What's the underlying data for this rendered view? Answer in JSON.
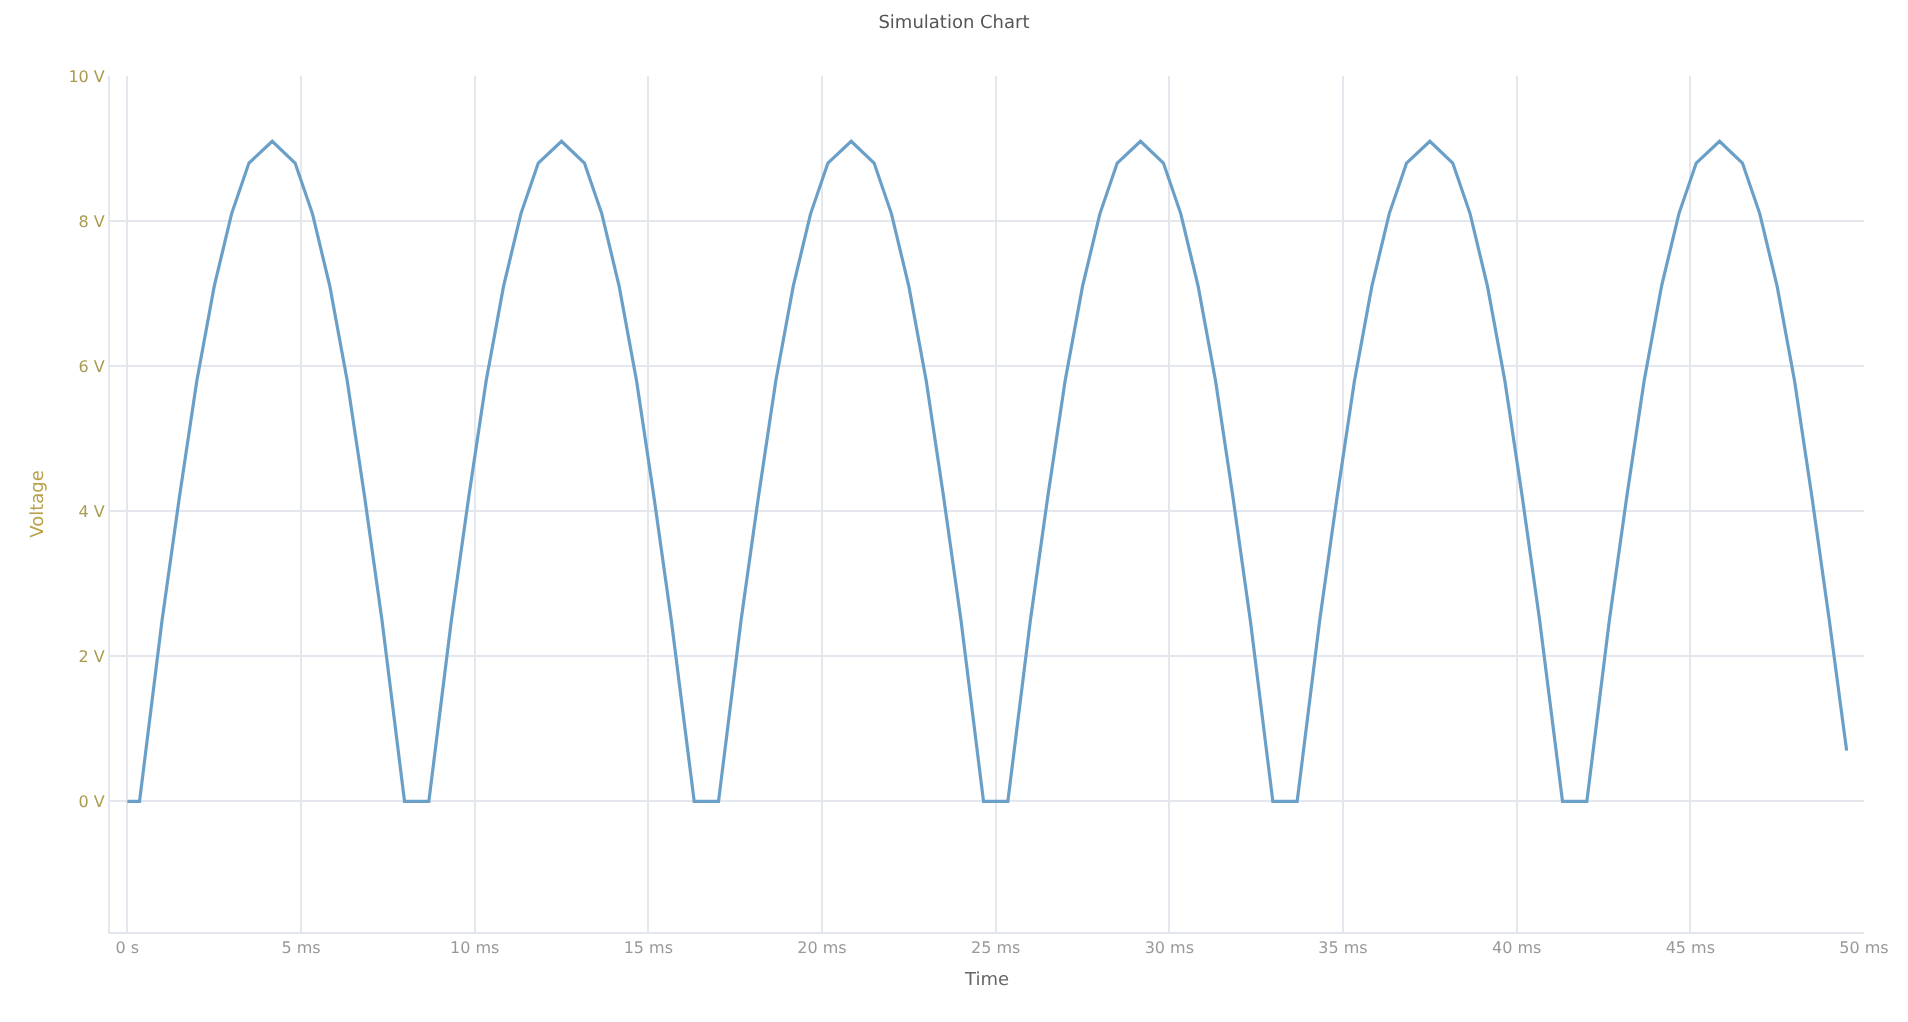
{
  "chart_data": {
    "type": "line",
    "title": "Simulation Chart",
    "xlabel": "Time",
    "ylabel": "Voltage",
    "xlim": [
      -0.5,
      50
    ],
    "ylim": [
      -1.8,
      10
    ],
    "xticks": [
      {
        "value": 0,
        "label": "0 s"
      },
      {
        "value": 5,
        "label": "5 ms"
      },
      {
        "value": 10,
        "label": "10 ms"
      },
      {
        "value": 15,
        "label": "15 ms"
      },
      {
        "value": 20,
        "label": "20 ms"
      },
      {
        "value": 25,
        "label": "25 ms"
      },
      {
        "value": 30,
        "label": "30 ms"
      },
      {
        "value": 35,
        "label": "35 ms"
      },
      {
        "value": 40,
        "label": "40 ms"
      },
      {
        "value": 45,
        "label": "45 ms"
      },
      {
        "value": 50,
        "label": "50 ms"
      }
    ],
    "yticks": [
      {
        "value": 0,
        "label": "0 V"
      },
      {
        "value": 2,
        "label": "2 V"
      },
      {
        "value": 4,
        "label": "4 V"
      },
      {
        "value": 6,
        "label": "6 V"
      },
      {
        "value": 8,
        "label": "8 V"
      },
      {
        "value": 10,
        "label": "10 V"
      }
    ],
    "grid": true,
    "marker": "none",
    "line_style": "solid",
    "x": [
      0,
      0.35,
      1,
      1.5,
      2,
      2.5,
      3,
      3.5,
      4.17,
      4.83,
      5.33,
      5.83,
      6.33,
      6.83,
      7.33,
      7.98,
      8.68,
      9.33,
      9.83,
      10.33,
      10.83,
      11.33,
      11.83,
      12.5,
      13.16,
      13.66,
      14.16,
      14.66,
      15.16,
      15.66,
      16.32,
      17.02,
      17.67,
      18.17,
      18.67,
      19.17,
      19.67,
      20.17,
      20.84,
      21.5,
      22,
      22.5,
      23,
      23.5,
      24,
      24.65,
      25.35,
      26,
      26.5,
      27,
      27.5,
      28,
      28.5,
      29.17,
      29.83,
      30.33,
      30.83,
      31.33,
      31.83,
      32.33,
      32.98,
      33.68,
      34.33,
      34.83,
      35.33,
      35.83,
      36.33,
      36.83,
      37.5,
      38.16,
      38.66,
      39.16,
      39.66,
      40.16,
      40.66,
      41.32,
      42.02,
      42.67,
      43.17,
      43.67,
      44.17,
      44.67,
      45.17,
      45.84,
      46.5,
      47,
      47.5,
      48,
      48.5,
      49,
      49.5
    ],
    "series": [
      {
        "color": "#6a9fc8",
        "values": [
          0,
          0,
          2.5,
          4.2,
          5.8,
          7.1,
          8.1,
          8.8,
          9.1,
          8.8,
          8.1,
          7.1,
          5.8,
          4.2,
          2.5,
          0,
          0,
          2.5,
          4.2,
          5.8,
          7.1,
          8.1,
          8.8,
          9.1,
          8.8,
          8.1,
          7.1,
          5.8,
          4.2,
          2.5,
          0,
          0,
          2.5,
          4.2,
          5.8,
          7.1,
          8.1,
          8.8,
          9.1,
          8.8,
          8.1,
          7.1,
          5.8,
          4.2,
          2.5,
          0,
          0,
          2.5,
          4.2,
          5.8,
          7.1,
          8.1,
          8.8,
          9.1,
          8.8,
          8.1,
          7.1,
          5.8,
          4.2,
          2.5,
          0,
          0,
          2.5,
          4.2,
          5.8,
          7.1,
          8.1,
          8.8,
          9.1,
          8.8,
          8.1,
          7.1,
          5.8,
          4.2,
          2.5,
          0,
          0,
          2.5,
          4.2,
          5.8,
          7.1,
          8.1,
          8.8,
          9.1,
          8.8,
          8.1,
          7.1,
          5.8,
          4.2,
          2.5,
          0.7
        ]
      }
    ]
  }
}
